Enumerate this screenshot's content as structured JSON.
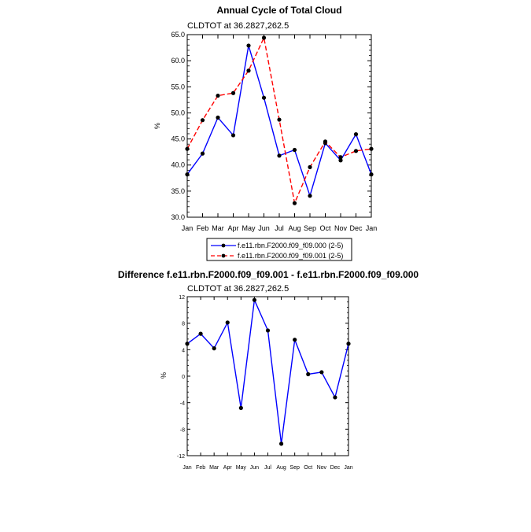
{
  "chart_data": [
    {
      "type": "line",
      "title": "Annual Cycle of Total Cloud",
      "subtitle": "CLDTOT at 36.2827,262.5",
      "ylabel": "%",
      "ylim": [
        30.0,
        65.0
      ],
      "yticks": [
        "30.0",
        "35.0",
        "40.0",
        "45.0",
        "50.0",
        "55.0",
        "60.0",
        "65.0"
      ],
      "categories": [
        "Jan",
        "Feb",
        "Mar",
        "Apr",
        "May",
        "Jun",
        "Jul",
        "Aug",
        "Sep",
        "Oct",
        "Nov",
        "Dec",
        "Jan"
      ],
      "legend": "bottom",
      "series": [
        {
          "name": "f.e11.rbn.F2000.f09_f09.000 (2-5)",
          "color": "#0000ff",
          "dash": "solid",
          "values": [
            38.2,
            42.2,
            49.1,
            45.7,
            62.9,
            52.9,
            41.8,
            42.9,
            34.1,
            44.2,
            40.9,
            45.9,
            38.2
          ]
        },
        {
          "name": "f.e11.rbn.F2000.f09_f09.001 (2-5)",
          "color": "#ff0000",
          "dash": "dashed",
          "values": [
            43.1,
            48.6,
            53.3,
            53.8,
            58.1,
            64.4,
            48.7,
            32.7,
            39.6,
            44.5,
            41.5,
            42.7,
            43.1
          ]
        }
      ]
    },
    {
      "type": "line",
      "title": "Difference f.e11.rbn.F2000.f09_f09.001 - f.e11.rbn.F2000.f09_f09.000",
      "subtitle": "CLDTOT at 36.2827,262.5",
      "ylabel": "%",
      "ylim": [
        -12,
        12
      ],
      "yticks": [
        "-12",
        "-8",
        "-4",
        "0",
        "4",
        "8",
        "12"
      ],
      "categories": [
        "Jan",
        "Feb",
        "Mar",
        "Apr",
        "May",
        "Jun",
        "Jul",
        "Aug",
        "Sep",
        "Oct",
        "Nov",
        "Dec",
        "Jan"
      ],
      "series": [
        {
          "color": "#0000ff",
          "dash": "solid",
          "values": [
            4.9,
            6.4,
            4.2,
            8.1,
            -4.8,
            11.5,
            6.9,
            -10.2,
            5.5,
            0.3,
            0.6,
            -3.2,
            4.9
          ]
        }
      ]
    }
  ]
}
